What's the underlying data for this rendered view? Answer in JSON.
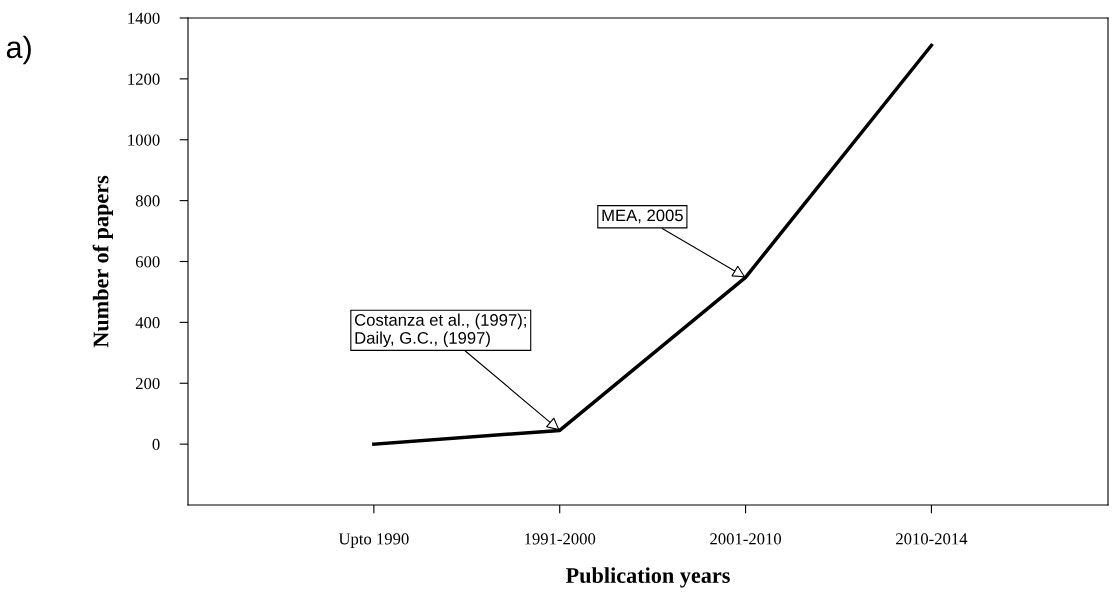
{
  "chart_data": {
    "type": "line",
    "xlabel": "Publication years",
    "ylabel": "Number of papers",
    "categories": [
      "Upto 1990",
      "1991-2000",
      "2001-2010",
      "2010-2014"
    ],
    "series": [
      {
        "color": "#000000",
        "values": [
          0,
          45,
          548,
          1310
        ]
      }
    ],
    "ylim": [
      -200,
      1400
    ],
    "yticks": [
      0,
      200,
      400,
      600,
      800,
      1000,
      1200,
      1400
    ],
    "marker": "none",
    "line_style": "solid",
    "grid": false,
    "legend": false,
    "annotations": [
      "a)",
      {
        "text": "Costanza et al., (1997);\nDaily, G.C., (1997)",
        "x": "1991-2000",
        "y": 45
      },
      {
        "text": "MEA, 2005",
        "x": "2001-2010",
        "y": 548
      }
    ]
  }
}
